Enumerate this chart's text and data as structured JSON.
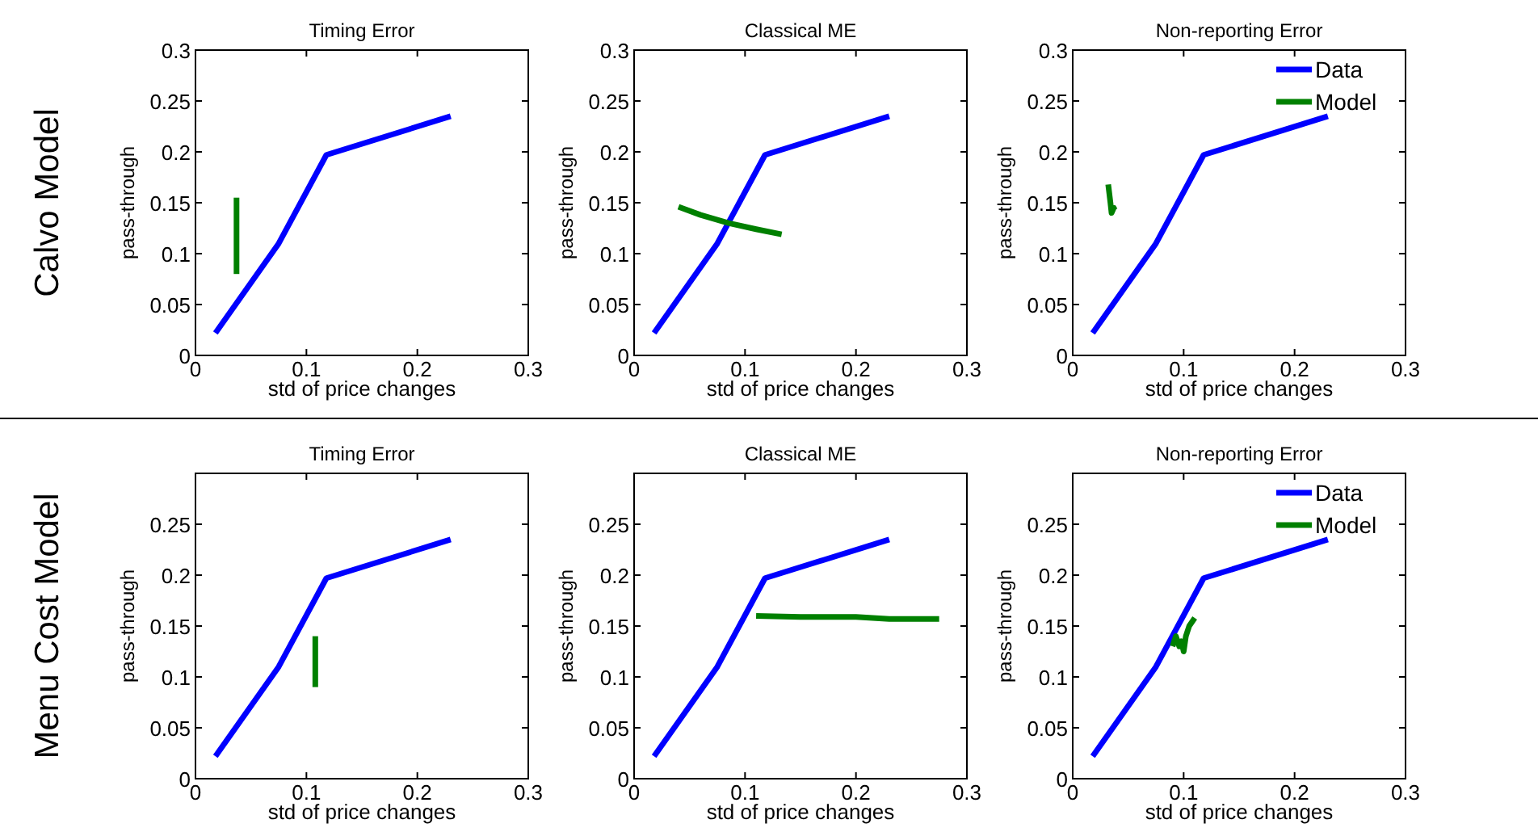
{
  "chart_data": [
    {
      "type": "line",
      "title": "Timing Error",
      "xlabel": "std of price changes",
      "ylabel": "pass-through",
      "annotations": [
        "Calvo Model"
      ],
      "xlim": [
        0,
        0.3
      ],
      "xticks": [
        0,
        0.1,
        0.2,
        0.3
      ],
      "ylim": [
        0,
        0.3
      ],
      "yticks": [
        0,
        0.05,
        0.1,
        0.15,
        0.2,
        0.25,
        0.3
      ],
      "legend": false,
      "series": [
        {
          "color": "#0000ff",
          "x": [
            0.018,
            0.075,
            0.118,
            0.23
          ],
          "values": [
            0.022,
            0.11,
            0.197,
            0.235
          ]
        },
        {
          "color": "#008000",
          "x": [
            0.037,
            0.037
          ],
          "values": [
            0.08,
            0.155
          ]
        }
      ]
    },
    {
      "type": "line",
      "title": "Classical ME",
      "xlabel": "std of price changes",
      "ylabel": "pass-through",
      "xlim": [
        0,
        0.3
      ],
      "xticks": [
        0,
        0.1,
        0.2,
        0.3
      ],
      "ylim": [
        0,
        0.3
      ],
      "yticks": [
        0,
        0.05,
        0.1,
        0.15,
        0.2,
        0.25,
        0.3
      ],
      "legend": false,
      "series": [
        {
          "color": "#0000ff",
          "x": [
            0.018,
            0.075,
            0.118,
            0.23
          ],
          "values": [
            0.022,
            0.11,
            0.197,
            0.235
          ]
        },
        {
          "color": "#008000",
          "x": [
            0.04,
            0.06,
            0.085,
            0.11,
            0.133
          ],
          "values": [
            0.146,
            0.138,
            0.13,
            0.124,
            0.119
          ]
        }
      ]
    },
    {
      "type": "line",
      "title": "Non-reporting Error",
      "xlabel": "std of price changes",
      "ylabel": "pass-through",
      "xlim": [
        0,
        0.3
      ],
      "xticks": [
        0,
        0.1,
        0.2,
        0.3
      ],
      "ylim": [
        0,
        0.3
      ],
      "yticks": [
        0,
        0.05,
        0.1,
        0.15,
        0.2,
        0.25,
        0.3
      ],
      "legend": "top right",
      "series": [
        {
          "name": "Data",
          "color": "#0000ff",
          "x": [
            0.018,
            0.075,
            0.118,
            0.23
          ],
          "values": [
            0.022,
            0.11,
            0.197,
            0.235
          ]
        },
        {
          "name": "Model",
          "color": "#008000",
          "x": [
            0.032,
            0.034,
            0.035,
            0.037,
            0.038
          ],
          "values": [
            0.168,
            0.15,
            0.14,
            0.145,
            0.143
          ]
        }
      ]
    },
    {
      "type": "line",
      "title": "Timing Error",
      "xlabel": "std of price changes",
      "ylabel": "pass-through",
      "annotations": [
        "Menu Cost Model"
      ],
      "xlim": [
        0,
        0.3
      ],
      "xticks": [
        0,
        0.1,
        0.2,
        0.3
      ],
      "ylim": [
        0,
        0.3
      ],
      "yticks": [
        0,
        0.05,
        0.1,
        0.15,
        0.2,
        0.25
      ],
      "legend": false,
      "series": [
        {
          "color": "#0000ff",
          "x": [
            0.018,
            0.075,
            0.118,
            0.23
          ],
          "values": [
            0.022,
            0.11,
            0.197,
            0.235
          ]
        },
        {
          "color": "#008000",
          "x": [
            0.108,
            0.108
          ],
          "values": [
            0.09,
            0.14
          ]
        }
      ]
    },
    {
      "type": "line",
      "title": "Classical ME",
      "xlabel": "std of price changes",
      "ylabel": "pass-through",
      "xlim": [
        0,
        0.3
      ],
      "xticks": [
        0,
        0.1,
        0.2,
        0.3
      ],
      "ylim": [
        0,
        0.3
      ],
      "yticks": [
        0,
        0.05,
        0.1,
        0.15,
        0.2,
        0.25
      ],
      "legend": false,
      "series": [
        {
          "color": "#0000ff",
          "x": [
            0.018,
            0.075,
            0.118,
            0.23
          ],
          "values": [
            0.022,
            0.11,
            0.197,
            0.235
          ]
        },
        {
          "color": "#008000",
          "x": [
            0.11,
            0.15,
            0.2,
            0.23,
            0.275
          ],
          "values": [
            0.16,
            0.159,
            0.159,
            0.157,
            0.157
          ]
        }
      ]
    },
    {
      "type": "line",
      "title": "Non-reporting Error",
      "xlabel": "std of price changes",
      "ylabel": "pass-through",
      "xlim": [
        0,
        0.3
      ],
      "xticks": [
        0,
        0.1,
        0.2,
        0.3
      ],
      "ylim": [
        0,
        0.3
      ],
      "yticks": [
        0,
        0.05,
        0.1,
        0.15,
        0.2,
        0.25
      ],
      "legend": "top right",
      "series": [
        {
          "name": "Data",
          "color": "#0000ff",
          "x": [
            0.018,
            0.075,
            0.118,
            0.23
          ],
          "values": [
            0.022,
            0.11,
            0.197,
            0.235
          ]
        },
        {
          "name": "Model",
          "color": "#008000",
          "x": [
            0.09,
            0.093,
            0.096,
            0.098,
            0.1,
            0.102,
            0.105,
            0.11
          ],
          "values": [
            0.13,
            0.14,
            0.13,
            0.135,
            0.125,
            0.14,
            0.15,
            0.158
          ]
        }
      ]
    }
  ]
}
